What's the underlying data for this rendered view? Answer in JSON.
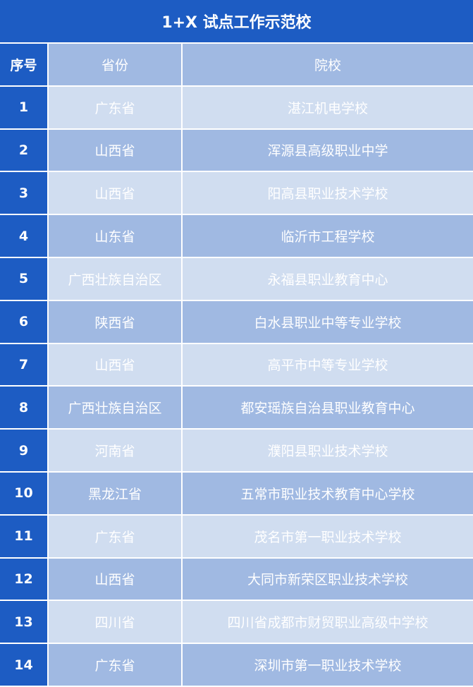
{
  "title": "1+X 试点工作示范校",
  "headers": {
    "index": "序号",
    "province": "省份",
    "school": "院校"
  },
  "colors": {
    "primary": "#1d5cc3",
    "row_dark": "#a0b9e2",
    "row_light": "#d0ddf0",
    "text": "#ffffff"
  },
  "rows": [
    {
      "index": "1",
      "province": "广东省",
      "school": "湛江机电学校"
    },
    {
      "index": "2",
      "province": "山西省",
      "school": "浑源县高级职业中学"
    },
    {
      "index": "3",
      "province": "山西省",
      "school": "阳高县职业技术学校"
    },
    {
      "index": "4",
      "province": "山东省",
      "school": "临沂市工程学校"
    },
    {
      "index": "5",
      "province": "广西壮族自治区",
      "school": "永福县职业教育中心"
    },
    {
      "index": "6",
      "province": "陕西省",
      "school": "白水县职业中等专业学校"
    },
    {
      "index": "7",
      "province": "山西省",
      "school": "高平市中等专业学校"
    },
    {
      "index": "8",
      "province": "广西壮族自治区",
      "school": "都安瑶族自治县职业教育中心"
    },
    {
      "index": "9",
      "province": "河南省",
      "school": "濮阳县职业技术学校"
    },
    {
      "index": "10",
      "province": "黑龙江省",
      "school": "五常市职业技术教育中心学校"
    },
    {
      "index": "11",
      "province": "广东省",
      "school": "茂名市第一职业技术学校"
    },
    {
      "index": "12",
      "province": "山西省",
      "school": "大同市新荣区职业技术学校"
    },
    {
      "index": "13",
      "province": "四川省",
      "school": "四川省成都市财贸职业高级中学校"
    },
    {
      "index": "14",
      "province": "广东省",
      "school": "深圳市第一职业技术学校"
    }
  ]
}
